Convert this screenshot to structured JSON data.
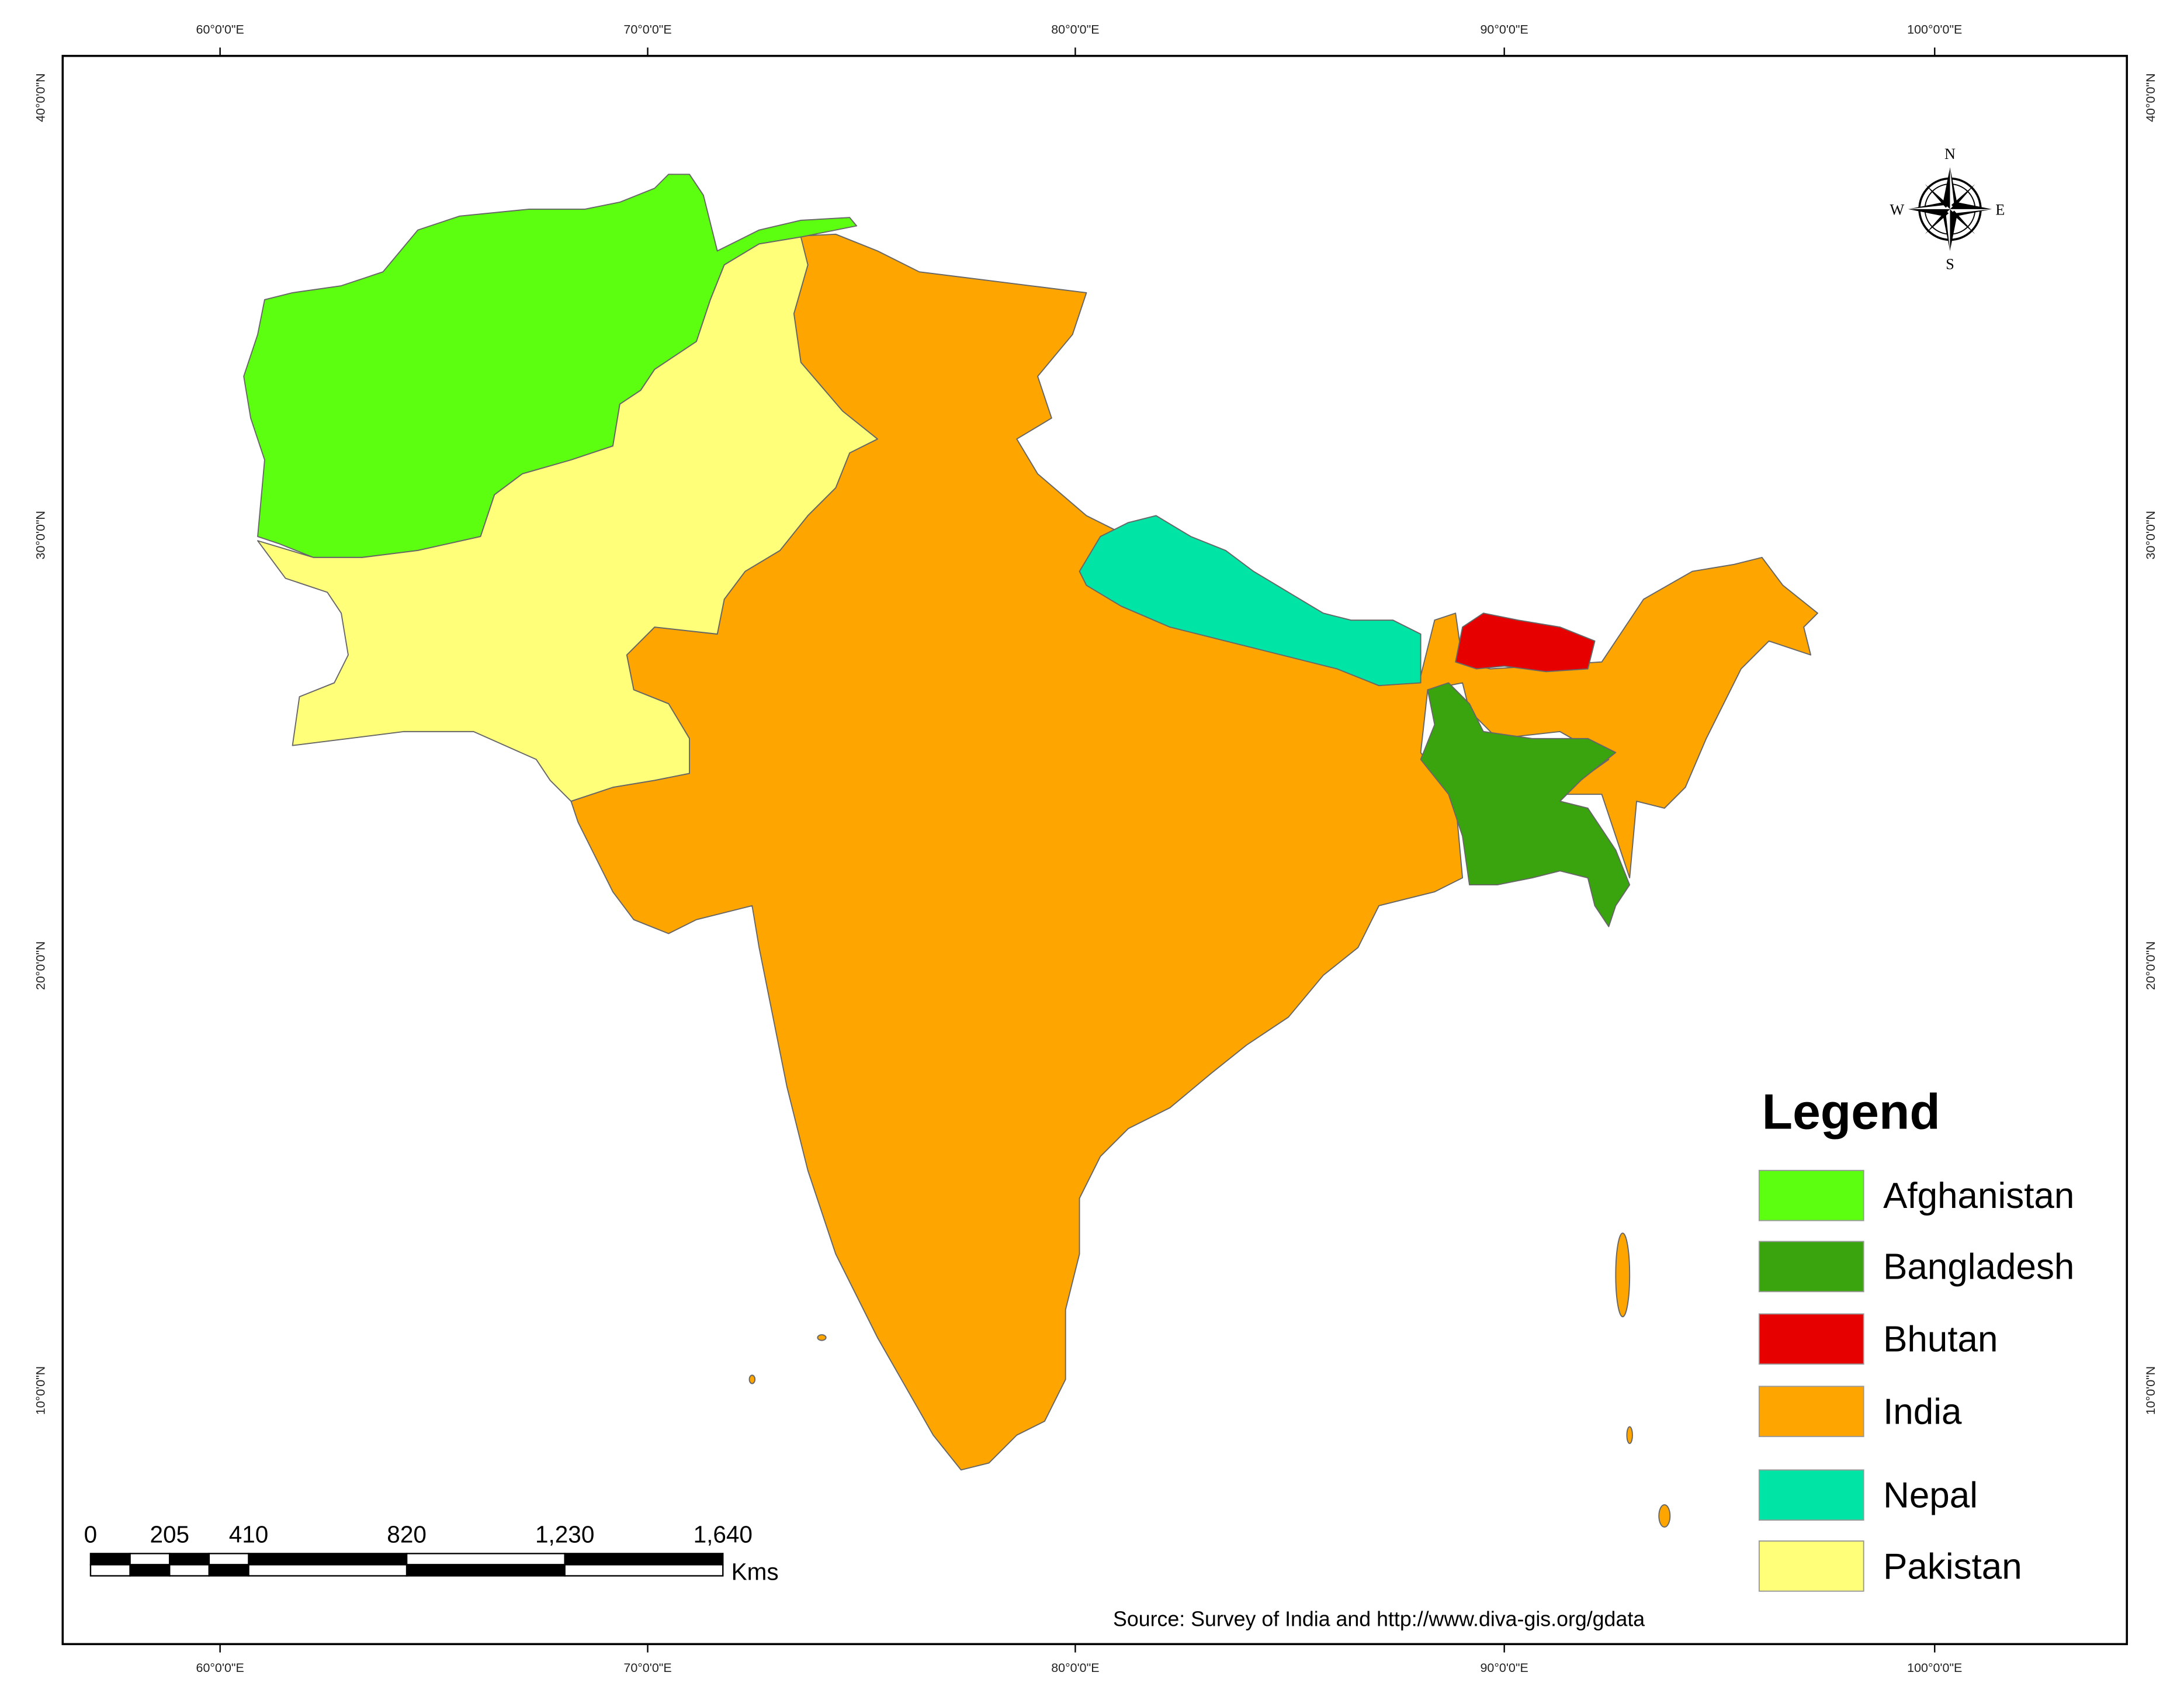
{
  "map": {
    "longitude_labels": [
      "60°0'0\"E",
      "70°0'0\"E",
      "80°0'0\"E",
      "90°0'0\"E",
      "100°0'0\"E"
    ],
    "latitude_labels": [
      "40°0'0\"N",
      "30°0'0\"N",
      "20°0'0\"N",
      "10°0'0\"N"
    ],
    "compass": {
      "north": "N",
      "south": "S",
      "east": "E",
      "west": "W"
    },
    "legend": {
      "title": "Legend",
      "items": [
        {
          "name": "Afghanistan",
          "color": "#5cff0f"
        },
        {
          "name": "Bangladesh",
          "color": "#3aa40f"
        },
        {
          "name": "Bhutan",
          "color": "#e60000"
        },
        {
          "name": "India",
          "color": "#ffa500"
        },
        {
          "name": "Nepal",
          "color": "#00e5a5"
        },
        {
          "name": "Pakistan",
          "color": "#ffff7a"
        }
      ]
    },
    "scale_bar": {
      "unit": "Kms",
      "ticks": [
        0,
        205,
        410,
        820,
        {
          "value": 1230,
          "label": "1,230"
        },
        {
          "value": 1640,
          "label": "1,640"
        }
      ]
    },
    "source": "Source: Survey of India and http://www.diva-gis.org/gdata"
  }
}
